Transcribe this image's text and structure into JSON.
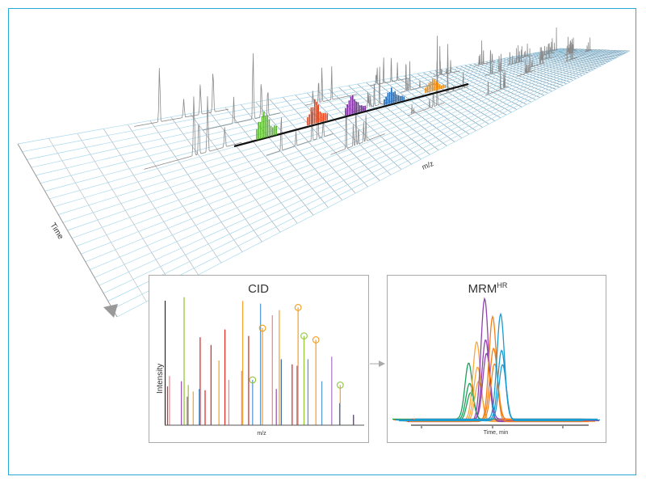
{
  "overview": {
    "axis_time": "Time",
    "axis_mz": "m/z"
  },
  "colors": {
    "frame": "#2aa9d6",
    "grid_blue": "#a9d9ee",
    "grid_gray": "#b5b5b5",
    "spectrum_gray": "#8a8a8a"
  },
  "cid": {
    "title": "CID",
    "ylabel": "Intensity",
    "xlabel": "m/z",
    "peaks": [
      {
        "mz": 1,
        "i": 30,
        "c": "#e0312b"
      },
      {
        "mz": 2,
        "i": 38,
        "c": "#f08a8a"
      },
      {
        "mz": 8,
        "i": 34,
        "c": "#9b59b6"
      },
      {
        "mz": 9.4,
        "i": 99,
        "c": "#9bc53d"
      },
      {
        "mz": 11,
        "i": 22,
        "c": "#9b59b6"
      },
      {
        "mz": 11.5,
        "i": 31,
        "c": "#9bc53d"
      },
      {
        "mz": 14,
        "i": 26,
        "c": "#f7a531"
      },
      {
        "mz": 17,
        "i": 28,
        "c": "#5b9bd5"
      },
      {
        "mz": 17.5,
        "i": 68,
        "c": "#e0312b"
      },
      {
        "mz": 20,
        "i": 27,
        "c": "#e0312b"
      },
      {
        "mz": 23,
        "i": 62,
        "c": "#e0312b"
      },
      {
        "mz": 27,
        "i": 50,
        "c": "#f7a531"
      },
      {
        "mz": 30,
        "i": 74,
        "c": "#e0312b"
      },
      {
        "mz": 32,
        "i": 35,
        "c": "#f08a8a"
      },
      {
        "mz": 38.5,
        "i": 42,
        "c": "#f08a8a"
      },
      {
        "mz": 39,
        "i": 96,
        "c": "#f7a531"
      },
      {
        "mz": 42,
        "i": 69,
        "c": "#e0312b"
      },
      {
        "mz": 44,
        "i": 35,
        "c": "#5b9bd5",
        "circled": "#8dc63f"
      },
      {
        "mz": 48,
        "i": 94,
        "c": "#5b9bd5"
      },
      {
        "mz": 49,
        "i": 75,
        "c": "#f7a531",
        "circled": "#f39c12"
      },
      {
        "mz": 54,
        "i": 85,
        "c": "#f08a8a"
      },
      {
        "mz": 56,
        "i": 28,
        "c": "#9b59b6"
      },
      {
        "mz": 57.5,
        "i": 89,
        "c": "#f7a531"
      },
      {
        "mz": 58.5,
        "i": 51,
        "c": "#3b6fb6"
      },
      {
        "mz": 64,
        "i": 47,
        "c": "#e0312b"
      },
      {
        "mz": 66.5,
        "i": 46,
        "c": "#9b59b6"
      },
      {
        "mz": 67,
        "i": 91,
        "c": "#f7a531",
        "circled": "#f39c12"
      },
      {
        "mz": 70,
        "i": 69,
        "c": "#9bc53d",
        "circled": "#8dc63f"
      },
      {
        "mz": 72,
        "i": 51,
        "c": "#5b9bd5"
      },
      {
        "mz": 76,
        "i": 66,
        "c": "#f7a531",
        "circled": "#f39c12"
      },
      {
        "mz": 79,
        "i": 34,
        "c": "#5b9bd5"
      },
      {
        "mz": 84,
        "i": 53,
        "c": "#b07cc6"
      },
      {
        "mz": 88,
        "i": 17,
        "c": "#2d5fa8"
      },
      {
        "mz": 88.3,
        "i": 31,
        "c": "#f7a531",
        "circled": "#8dc63f"
      },
      {
        "mz": 95,
        "i": 8,
        "c": "#6a2c8a"
      }
    ]
  },
  "mrm": {
    "title": "MRM",
    "title_sup": "HR",
    "xlabel": "Time, min",
    "traces": [
      {
        "c": "#1aa05a",
        "rt": 33,
        "heights": [
          46,
          30,
          23
        ]
      },
      {
        "c": "#f9a73e",
        "rt": 37.5,
        "heights": [
          64,
          44,
          33
        ]
      },
      {
        "c": "#8e44ad",
        "rt": 42,
        "heights": [
          100,
          67,
          54
        ]
      },
      {
        "c": "#f57f17",
        "rt": 46.5,
        "heights": [
          86,
          58,
          46
        ]
      },
      {
        "c": "#1b9bd1",
        "rt": 51,
        "heights": [
          86,
          57,
          46
        ]
      }
    ]
  }
}
